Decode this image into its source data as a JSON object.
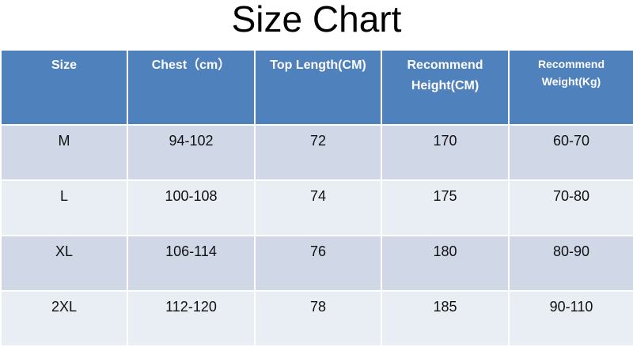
{
  "title": "Size Chart",
  "table": {
    "header": [
      "Size",
      "Chest（cm）",
      "Top Length(CM)",
      "Recommend Height(CM)",
      "Recommend Weight(Kg)"
    ],
    "rows": [
      [
        "M",
        "94-102",
        "72",
        "170",
        "60-70"
      ],
      [
        "L",
        "100-108",
        "74",
        "175",
        "70-80"
      ],
      [
        "XL",
        "106-114",
        "76",
        "180",
        "80-90"
      ],
      [
        "2XL",
        "112-120",
        "78",
        "185",
        "90-110"
      ]
    ]
  }
}
